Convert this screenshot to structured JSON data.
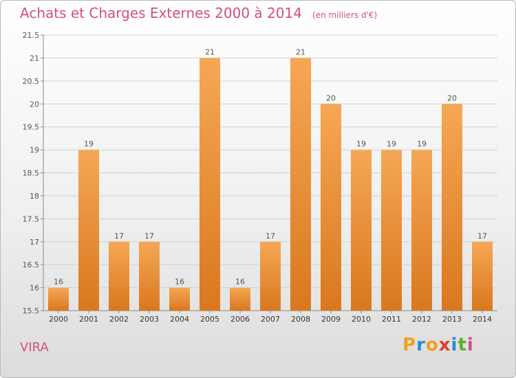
{
  "title": "Achats et Charges Externes 2000 à 2014",
  "unit_note": "(en milliers d'€)",
  "location": "VIRA",
  "logo": {
    "letters": [
      "P",
      "r",
      "o",
      "x",
      "i",
      "t",
      "i"
    ],
    "colors": [
      "#f0a21a",
      "#1e90d6",
      "#f0a21a",
      "#e23b2a",
      "#1e90d6",
      "#5bb030",
      "#d94d8c"
    ]
  },
  "colors": {
    "bar_light": "#f6a755",
    "bar_dark": "#d9781e",
    "title": "#d44f78",
    "grid": "#cfcfcf"
  },
  "chart_data": {
    "type": "bar",
    "categories": [
      "2000",
      "2001",
      "2002",
      "2003",
      "2004",
      "2005",
      "2006",
      "2007",
      "2008",
      "2009",
      "2010",
      "2011",
      "2012",
      "2013",
      "2014"
    ],
    "values": [
      16,
      19,
      17,
      17,
      16,
      21,
      16,
      17,
      21,
      20,
      19,
      19,
      19,
      20,
      17
    ],
    "data_labels": [
      "16",
      "19",
      "17",
      "17",
      "16",
      "21",
      "16",
      "17",
      "21",
      "20",
      "19",
      "19",
      "19",
      "20",
      "17"
    ],
    "title": "Achats et Charges Externes 2000 à 2014",
    "xlabel": "",
    "ylabel": "",
    "ylim": [
      15.5,
      21.5
    ],
    "yticks": [
      15.5,
      16,
      16.5,
      17,
      17.5,
      18,
      18.5,
      19,
      19.5,
      20,
      20.5,
      21,
      21.5
    ],
    "ytick_labels": [
      "15.5",
      "16",
      "16.5",
      "17",
      "17.5",
      "18",
      "18.5",
      "19",
      "19.5",
      "20",
      "20.5",
      "21",
      "21.5"
    ],
    "grid": true,
    "legend": "none"
  }
}
